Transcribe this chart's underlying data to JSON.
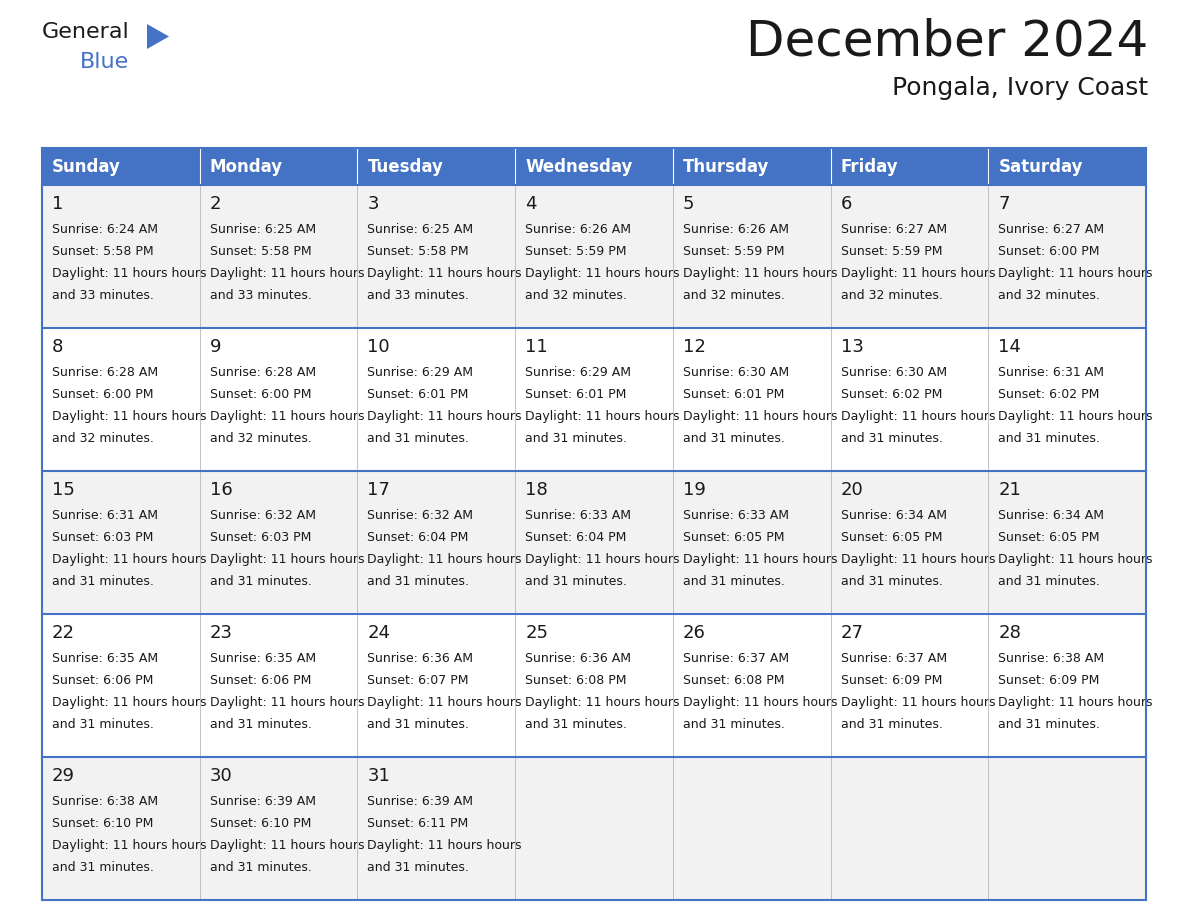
{
  "title": "December 2024",
  "subtitle": "Pongala, Ivory Coast",
  "header_color": "#4472C4",
  "header_text_color": "#FFFFFF",
  "row_bg_even": "#F2F2F2",
  "row_bg_odd": "#FFFFFF",
  "border_color": "#4472C4",
  "separator_color": "#AAAAAA",
  "text_color": "#1a1a1a",
  "days_of_week": [
    "Sunday",
    "Monday",
    "Tuesday",
    "Wednesday",
    "Thursday",
    "Friday",
    "Saturday"
  ],
  "calendar_data": [
    [
      {
        "day": 1,
        "sunrise": "6:24 AM",
        "sunset": "5:58 PM",
        "daylight": "11 hours and 33 minutes"
      },
      {
        "day": 2,
        "sunrise": "6:25 AM",
        "sunset": "5:58 PM",
        "daylight": "11 hours and 33 minutes"
      },
      {
        "day": 3,
        "sunrise": "6:25 AM",
        "sunset": "5:58 PM",
        "daylight": "11 hours and 33 minutes"
      },
      {
        "day": 4,
        "sunrise": "6:26 AM",
        "sunset": "5:59 PM",
        "daylight": "11 hours and 32 minutes"
      },
      {
        "day": 5,
        "sunrise": "6:26 AM",
        "sunset": "5:59 PM",
        "daylight": "11 hours and 32 minutes"
      },
      {
        "day": 6,
        "sunrise": "6:27 AM",
        "sunset": "5:59 PM",
        "daylight": "11 hours and 32 minutes"
      },
      {
        "day": 7,
        "sunrise": "6:27 AM",
        "sunset": "6:00 PM",
        "daylight": "11 hours and 32 minutes"
      }
    ],
    [
      {
        "day": 8,
        "sunrise": "6:28 AM",
        "sunset": "6:00 PM",
        "daylight": "11 hours and 32 minutes"
      },
      {
        "day": 9,
        "sunrise": "6:28 AM",
        "sunset": "6:00 PM",
        "daylight": "11 hours and 32 minutes"
      },
      {
        "day": 10,
        "sunrise": "6:29 AM",
        "sunset": "6:01 PM",
        "daylight": "11 hours and 31 minutes"
      },
      {
        "day": 11,
        "sunrise": "6:29 AM",
        "sunset": "6:01 PM",
        "daylight": "11 hours and 31 minutes"
      },
      {
        "day": 12,
        "sunrise": "6:30 AM",
        "sunset": "6:01 PM",
        "daylight": "11 hours and 31 minutes"
      },
      {
        "day": 13,
        "sunrise": "6:30 AM",
        "sunset": "6:02 PM",
        "daylight": "11 hours and 31 minutes"
      },
      {
        "day": 14,
        "sunrise": "6:31 AM",
        "sunset": "6:02 PM",
        "daylight": "11 hours and 31 minutes"
      }
    ],
    [
      {
        "day": 15,
        "sunrise": "6:31 AM",
        "sunset": "6:03 PM",
        "daylight": "11 hours and 31 minutes"
      },
      {
        "day": 16,
        "sunrise": "6:32 AM",
        "sunset": "6:03 PM",
        "daylight": "11 hours and 31 minutes"
      },
      {
        "day": 17,
        "sunrise": "6:32 AM",
        "sunset": "6:04 PM",
        "daylight": "11 hours and 31 minutes"
      },
      {
        "day": 18,
        "sunrise": "6:33 AM",
        "sunset": "6:04 PM",
        "daylight": "11 hours and 31 minutes"
      },
      {
        "day": 19,
        "sunrise": "6:33 AM",
        "sunset": "6:05 PM",
        "daylight": "11 hours and 31 minutes"
      },
      {
        "day": 20,
        "sunrise": "6:34 AM",
        "sunset": "6:05 PM",
        "daylight": "11 hours and 31 minutes"
      },
      {
        "day": 21,
        "sunrise": "6:34 AM",
        "sunset": "6:05 PM",
        "daylight": "11 hours and 31 minutes"
      }
    ],
    [
      {
        "day": 22,
        "sunrise": "6:35 AM",
        "sunset": "6:06 PM",
        "daylight": "11 hours and 31 minutes"
      },
      {
        "day": 23,
        "sunrise": "6:35 AM",
        "sunset": "6:06 PM",
        "daylight": "11 hours and 31 minutes"
      },
      {
        "day": 24,
        "sunrise": "6:36 AM",
        "sunset": "6:07 PM",
        "daylight": "11 hours and 31 minutes"
      },
      {
        "day": 25,
        "sunrise": "6:36 AM",
        "sunset": "6:08 PM",
        "daylight": "11 hours and 31 minutes"
      },
      {
        "day": 26,
        "sunrise": "6:37 AM",
        "sunset": "6:08 PM",
        "daylight": "11 hours and 31 minutes"
      },
      {
        "day": 27,
        "sunrise": "6:37 AM",
        "sunset": "6:09 PM",
        "daylight": "11 hours and 31 minutes"
      },
      {
        "day": 28,
        "sunrise": "6:38 AM",
        "sunset": "6:09 PM",
        "daylight": "11 hours and 31 minutes"
      }
    ],
    [
      {
        "day": 29,
        "sunrise": "6:38 AM",
        "sunset": "6:10 PM",
        "daylight": "11 hours and 31 minutes"
      },
      {
        "day": 30,
        "sunrise": "6:39 AM",
        "sunset": "6:10 PM",
        "daylight": "11 hours and 31 minutes"
      },
      {
        "day": 31,
        "sunrise": "6:39 AM",
        "sunset": "6:11 PM",
        "daylight": "11 hours and 31 minutes"
      },
      null,
      null,
      null,
      null
    ]
  ],
  "logo_text1_color": "#1a1a1a",
  "logo_text2_color": "#4472C4",
  "logo_triangle_color": "#4472C4",
  "title_fontsize": 36,
  "subtitle_fontsize": 18,
  "header_fontsize": 12,
  "day_num_fontsize": 13,
  "cell_text_fontsize": 9
}
